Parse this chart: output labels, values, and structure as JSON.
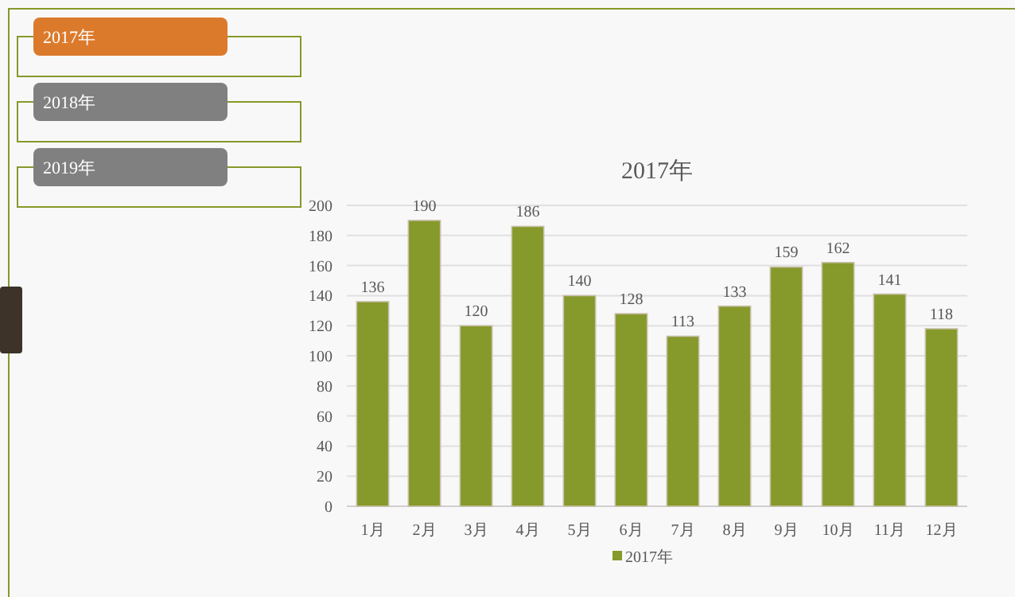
{
  "chart_data": {
    "type": "bar",
    "title": "2017年",
    "categories": [
      "1月",
      "2月",
      "3月",
      "4月",
      "5月",
      "6月",
      "7月",
      "8月",
      "9月",
      "10月",
      "11月",
      "12月"
    ],
    "series": [
      {
        "name": "2017年",
        "color": "#86992b",
        "values": [
          136,
          190,
          120,
          186,
          140,
          128,
          113,
          133,
          159,
          162,
          141,
          118
        ]
      }
    ],
    "ylim": [
      0,
      200
    ],
    "yticks": [
      0,
      20,
      40,
      60,
      80,
      100,
      120,
      140,
      160,
      180,
      200
    ],
    "grid": "y",
    "data_labels": true,
    "legend": "bottom",
    "annotations": [
      "2017年",
      "2018年",
      "2019年"
    ]
  }
}
